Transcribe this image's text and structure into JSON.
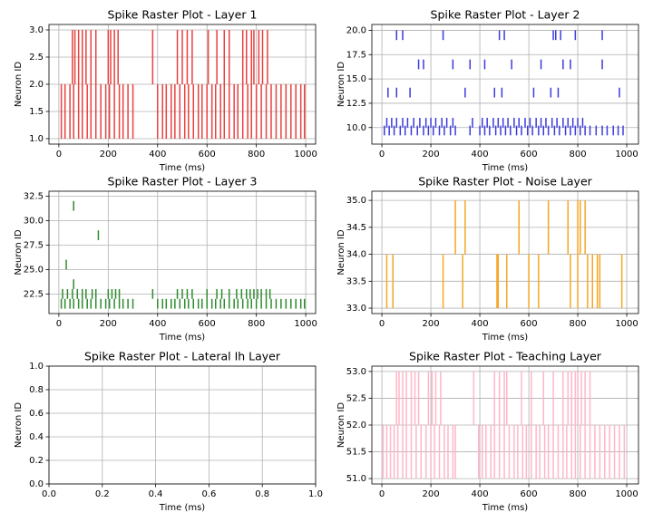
{
  "chart_data": [
    {
      "type": "eventplot",
      "title": "Spike Raster Plot - Layer 1",
      "x_label": "Time (ms)",
      "y_label": "Neuron ID",
      "color": "#e8413f",
      "grid": true,
      "xlim": [
        -40,
        1040
      ],
      "ylim": [
        0.9,
        3.1
      ],
      "xticks": [
        0,
        200,
        400,
        600,
        800,
        1000
      ],
      "yticks": [
        {
          "value": 1,
          "label": "1.0"
        },
        1.5,
        {
          "value": 2,
          "label": "2.0"
        },
        2.5,
        {
          "value": 3,
          "label": "3.0"
        }
      ],
      "line_length": 1,
      "rows": [
        {
          "offset": 1.5,
          "times": [
            10,
            25,
            45,
            60,
            80,
            95,
            115,
            130,
            150,
            170,
            190,
            205,
            225,
            245,
            260,
            280,
            300,
            400,
            420,
            435,
            455,
            470,
            490,
            510,
            525,
            545,
            565,
            580,
            600,
            620,
            635,
            655,
            670,
            690,
            710,
            725,
            745,
            765,
            780,
            800,
            820,
            840,
            860,
            880,
            900,
            920,
            940,
            960,
            980,
            995
          ]
        },
        {
          "offset": 2.5,
          "times": [
            55,
            65,
            80,
            95,
            110,
            130,
            150,
            200,
            210,
            225,
            240,
            380,
            480,
            500,
            520,
            540,
            605,
            640,
            670,
            690,
            745,
            760,
            780,
            790,
            810,
            825,
            845
          ]
        }
      ]
    },
    {
      "type": "eventplot",
      "title": "Spike Raster Plot - Layer 2",
      "x_label": "Time (ms)",
      "y_label": "Neuron ID",
      "color": "#3b3bdd",
      "grid": true,
      "xlim": [
        -41,
        1048
      ],
      "ylim": [
        8.3,
        20.6
      ],
      "xticks": [
        0,
        200,
        400,
        600,
        800,
        1000
      ],
      "yticks": [
        {
          "value": 10,
          "label": "10.0"
        },
        12.5,
        {
          "value": 15,
          "label": "15.0"
        },
        17.5,
        {
          "value": 20,
          "label": "20.0"
        }
      ],
      "line_length": 1,
      "rows": [
        {
          "offset": 9.7,
          "times": [
            10,
            30,
            50,
            75,
            95,
            120,
            145,
            170,
            190,
            210,
            235,
            255,
            280,
            300,
            360,
            400,
            420,
            440,
            465,
            485,
            505,
            525,
            550,
            570,
            595,
            615,
            640,
            660,
            680,
            705,
            725,
            750,
            770,
            790,
            810,
            830,
            850,
            875,
            900,
            920,
            945,
            965,
            985
          ]
        },
        {
          "offset": 10.5,
          "times": [
            20,
            40,
            60,
            85,
            105,
            130,
            155,
            180,
            200,
            220,
            245,
            265,
            290,
            370,
            410,
            430,
            455,
            475,
            495,
            515,
            540,
            560,
            585,
            605,
            630,
            650,
            670,
            695,
            715,
            740,
            760,
            780,
            800,
            820
          ]
        },
        {
          "offset": 13.6,
          "times": [
            25,
            60,
            115,
            340,
            460,
            490,
            620,
            690,
            720,
            970
          ]
        },
        {
          "offset": 16.5,
          "times": [
            150,
            170,
            290,
            360,
            420,
            530,
            650,
            740,
            770,
            900
          ]
        },
        {
          "offset": 19.5,
          "times": [
            60,
            85,
            250,
            480,
            500,
            700,
            710,
            730,
            790,
            900
          ]
        }
      ]
    },
    {
      "type": "eventplot",
      "title": "Spike Raster Plot - Layer 3",
      "x_label": "Time (ms)",
      "y_label": "Neuron ID",
      "color": "#2e8b2e",
      "grid": true,
      "xlim": [
        -40,
        1040
      ],
      "ylim": [
        20.5,
        33
      ],
      "xticks": [
        0,
        200,
        400,
        600,
        800,
        1000
      ],
      "yticks": [
        22.5,
        {
          "value": 25,
          "label": "25.0"
        },
        27.5,
        {
          "value": 30,
          "label": "30.0"
        },
        32.5
      ],
      "line_length": 1,
      "rows": [
        {
          "offset": 21.5,
          "times": [
            10,
            25,
            45,
            60,
            80,
            95,
            115,
            130,
            150,
            170,
            190,
            205,
            225,
            245,
            260,
            280,
            300,
            400,
            420,
            435,
            455,
            470,
            490,
            510,
            525,
            545,
            565,
            580,
            600,
            620,
            635,
            655,
            670,
            690,
            710,
            725,
            745,
            765,
            780,
            800,
            820,
            840,
            860,
            880,
            900,
            920,
            940,
            960,
            980,
            995
          ]
        },
        {
          "offset": 22.5,
          "times": [
            15,
            35,
            55,
            75,
            95,
            110,
            135,
            150,
            200,
            215,
            230,
            245,
            380,
            480,
            500,
            520,
            540,
            600,
            640,
            660,
            690,
            720,
            740,
            760,
            775,
            790,
            805,
            820,
            840,
            855
          ]
        },
        {
          "offset": 23.5,
          "times": [
            60
          ]
        },
        {
          "offset": 25.5,
          "times": [
            30
          ]
        },
        {
          "offset": 28.5,
          "times": [
            160
          ]
        },
        {
          "offset": 31.5,
          "times": [
            60
          ]
        }
      ]
    },
    {
      "type": "eventplot",
      "title": "Spike Raster Plot - Noise Layer",
      "x_label": "Time (ms)",
      "y_label": "Neuron ID",
      "color": "#f5a623",
      "grid": true,
      "xlim": [
        -41,
        1048
      ],
      "ylim": [
        32.9,
        35.17
      ],
      "xticks": [
        0,
        200,
        400,
        600,
        800,
        1000
      ],
      "yticks": [
        {
          "value": 33,
          "label": "33.0"
        },
        33.5,
        {
          "value": 34,
          "label": "34.0"
        },
        34.5,
        {
          "value": 35,
          "label": "35.0"
        }
      ],
      "line_length": 1,
      "rows": [
        {
          "offset": 33.5,
          "times": [
            20,
            45,
            250,
            330,
            470,
            475,
            510,
            600,
            640,
            770,
            800,
            840,
            860,
            880,
            890,
            980
          ]
        },
        {
          "offset": 34.5,
          "times": [
            300,
            340,
            560,
            680,
            760,
            800,
            810,
            830
          ]
        }
      ]
    },
    {
      "type": "eventplot",
      "title": "Spike Raster Plot - Lateral Ih Layer",
      "x_label": "Time (ms)",
      "y_label": "Neuron ID",
      "color": "#7f7f7f",
      "grid": true,
      "xlim": [
        0,
        1
      ],
      "ylim": [
        0,
        1
      ],
      "xticks": [
        {
          "value": 0,
          "label": "0.0"
        },
        0.2,
        0.4,
        0.6,
        0.8,
        {
          "value": 1,
          "label": "1.0"
        }
      ],
      "yticks": [
        {
          "value": 0,
          "label": "0.0"
        },
        0.2,
        0.4,
        0.6,
        0.8,
        {
          "value": 1,
          "label": "1.0"
        }
      ],
      "line_length": 1,
      "rows": []
    },
    {
      "type": "eventplot",
      "title": "Spike Raster Plot - Teaching Layer",
      "x_label": "Time (ms)",
      "y_label": "Neuron ID",
      "color": "#ffb6c8",
      "grid": true,
      "xlim": [
        -41,
        1048
      ],
      "ylim": [
        50.9,
        53.1
      ],
      "xticks": [
        0,
        200,
        400,
        600,
        800,
        1000
      ],
      "yticks": [
        {
          "value": 51,
          "label": "51.0"
        },
        51.5,
        {
          "value": 52,
          "label": "52.0"
        },
        52.5,
        {
          "value": 53,
          "label": "53.0"
        }
      ],
      "line_length": 1,
      "rows": [
        {
          "offset": 51.5,
          "times": [
            5,
            20,
            35,
            50,
            65,
            85,
            100,
            120,
            140,
            160,
            180,
            200,
            215,
            235,
            255,
            270,
            290,
            300,
            395,
            410,
            425,
            445,
            460,
            480,
            500,
            520,
            540,
            555,
            575,
            590,
            610,
            630,
            645,
            665,
            680,
            700,
            720,
            740,
            755,
            775,
            790,
            810,
            830,
            850,
            870,
            890,
            910,
            930,
            950,
            970,
            990
          ]
        },
        {
          "offset": 52.5,
          "times": [
            60,
            70,
            85,
            100,
            120,
            135,
            150,
            190,
            205,
            220,
            240,
            375,
            460,
            480,
            500,
            510,
            570,
            610,
            660,
            700,
            740,
            760,
            775,
            790,
            800,
            815,
            830,
            850
          ]
        }
      ]
    }
  ]
}
